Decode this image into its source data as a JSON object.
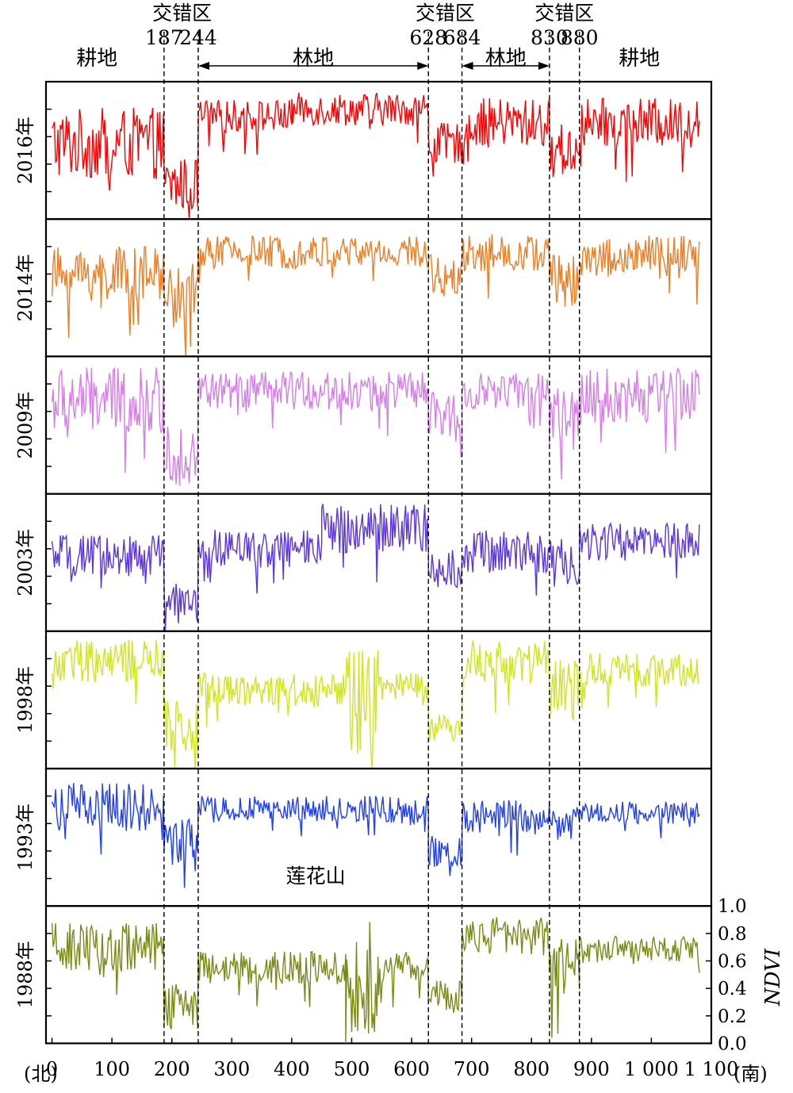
{
  "chart_data": {
    "type": "line",
    "title": "",
    "ylabel": "NDVI",
    "ylim": [
      0.0,
      1.0
    ],
    "y_ticks": [
      "0.0",
      "0.2",
      "0.4",
      "0.6",
      "0.8",
      "1.0"
    ],
    "xlim": [
      -10,
      1100
    ],
    "x_ticks": [
      {
        "value": 0,
        "label": "0"
      },
      {
        "value": 100,
        "label": "100"
      },
      {
        "value": 200,
        "label": "200"
      },
      {
        "value": 300,
        "label": "300"
      },
      {
        "value": 400,
        "label": "400"
      },
      {
        "value": 500,
        "label": "500"
      },
      {
        "value": 600,
        "label": "600"
      },
      {
        "value": 700,
        "label": "700"
      },
      {
        "value": 800,
        "label": "800"
      },
      {
        "value": 900,
        "label": "900"
      },
      {
        "value": 1000,
        "label": "1 000"
      },
      {
        "value": 1100,
        "label": "1 100"
      }
    ],
    "x_end_left": "(北)",
    "x_end_right": "(南)",
    "boundaries": [
      187,
      244,
      628,
      684,
      830,
      880
    ],
    "boundary_labels": [
      {
        "x": 187,
        "label": "187"
      },
      {
        "x": 244,
        "label": "244"
      },
      {
        "x": 628,
        "label": "628"
      },
      {
        "x": 684,
        "label": "684"
      },
      {
        "x": 830,
        "label": "830"
      },
      {
        "x": 880,
        "label": "880"
      }
    ],
    "zone_labels": [
      {
        "x": 217,
        "label": "交错区"
      },
      {
        "x": 656,
        "label": "交错区"
      },
      {
        "x": 855,
        "label": "交错区"
      }
    ],
    "land_labels": [
      {
        "x": 75,
        "label": "耕地",
        "arrow": false
      },
      {
        "x": 436,
        "label": "林地",
        "arrow": true,
        "from": 244,
        "to": 628
      },
      {
        "x": 757,
        "label": "林地",
        "arrow": true,
        "from": 684,
        "to": 830
      },
      {
        "x": 980,
        "label": "耕地",
        "arrow": false
      }
    ],
    "annotation": "莲花山",
    "annotation_x": 440,
    "series": [
      {
        "name": "2016年",
        "color": "#ff0000",
        "segments": [
          {
            "x": [
              0,
              187
            ],
            "level": 0.55,
            "noise": 0.26
          },
          {
            "x": [
              187,
              244
            ],
            "level": 0.25,
            "noise": 0.2
          },
          {
            "x": [
              244,
              400
            ],
            "level": 0.75,
            "noise": 0.12
          },
          {
            "x": [
              400,
              628
            ],
            "level": 0.8,
            "noise": 0.12
          },
          {
            "x": [
              628,
              684
            ],
            "level": 0.55,
            "noise": 0.15
          },
          {
            "x": [
              684,
              830
            ],
            "level": 0.7,
            "noise": 0.18
          },
          {
            "x": [
              830,
              880
            ],
            "level": 0.5,
            "noise": 0.2
          },
          {
            "x": [
              880,
              1080
            ],
            "level": 0.7,
            "noise": 0.18
          }
        ]
      },
      {
        "name": "2014年",
        "color": "#ef7d22",
        "segments": [
          {
            "x": [
              0,
              187
            ],
            "level": 0.6,
            "noise": 0.2
          },
          {
            "x": [
              187,
              244
            ],
            "level": 0.45,
            "noise": 0.25
          },
          {
            "x": [
              244,
              628
            ],
            "level": 0.76,
            "noise": 0.12
          },
          {
            "x": [
              628,
              684
            ],
            "level": 0.6,
            "noise": 0.15
          },
          {
            "x": [
              684,
              830
            ],
            "level": 0.75,
            "noise": 0.14
          },
          {
            "x": [
              830,
              880
            ],
            "level": 0.55,
            "noise": 0.2
          },
          {
            "x": [
              880,
              1080
            ],
            "level": 0.72,
            "noise": 0.16
          }
        ]
      },
      {
        "name": "2009年",
        "color": "#d57de8",
        "segments": [
          {
            "x": [
              0,
              187
            ],
            "level": 0.68,
            "noise": 0.24
          },
          {
            "x": [
              187,
              244
            ],
            "level": 0.3,
            "noise": 0.25
          },
          {
            "x": [
              244,
              628
            ],
            "level": 0.75,
            "noise": 0.14
          },
          {
            "x": [
              628,
              684
            ],
            "level": 0.55,
            "noise": 0.2
          },
          {
            "x": [
              684,
              830
            ],
            "level": 0.75,
            "noise": 0.13
          },
          {
            "x": [
              830,
              880
            ],
            "level": 0.55,
            "noise": 0.22
          },
          {
            "x": [
              880,
              1080
            ],
            "level": 0.72,
            "noise": 0.2
          }
        ]
      },
      {
        "name": "2003年",
        "color": "#5a35e0",
        "segments": [
          {
            "x": [
              0,
              187
            ],
            "level": 0.55,
            "noise": 0.15
          },
          {
            "x": [
              187,
              244
            ],
            "level": 0.2,
            "noise": 0.15
          },
          {
            "x": [
              244,
              450
            ],
            "level": 0.6,
            "noise": 0.14
          },
          {
            "x": [
              450,
              628
            ],
            "level": 0.75,
            "noise": 0.18
          },
          {
            "x": [
              628,
              684
            ],
            "level": 0.45,
            "noise": 0.14
          },
          {
            "x": [
              684,
              830
            ],
            "level": 0.58,
            "noise": 0.16
          },
          {
            "x": [
              830,
              880
            ],
            "level": 0.5,
            "noise": 0.18
          },
          {
            "x": [
              880,
              1080
            ],
            "level": 0.65,
            "noise": 0.14
          }
        ]
      },
      {
        "name": "1998年",
        "color": "#cfe51e",
        "segments": [
          {
            "x": [
              0,
              187
            ],
            "level": 0.78,
            "noise": 0.16
          },
          {
            "x": [
              187,
              244
            ],
            "level": 0.3,
            "noise": 0.2
          },
          {
            "x": [
              244,
              490
            ],
            "level": 0.58,
            "noise": 0.12
          },
          {
            "x": [
              490,
              545
            ],
            "level": 0.45,
            "noise": 0.45
          },
          {
            "x": [
              545,
              628
            ],
            "level": 0.6,
            "noise": 0.1
          },
          {
            "x": [
              628,
              684
            ],
            "level": 0.3,
            "noise": 0.1
          },
          {
            "x": [
              684,
              830
            ],
            "level": 0.78,
            "noise": 0.16
          },
          {
            "x": [
              830,
              880
            ],
            "level": 0.55,
            "noise": 0.25
          },
          {
            "x": [
              880,
              1080
            ],
            "level": 0.72,
            "noise": 0.12
          }
        ]
      },
      {
        "name": "1993年",
        "color": "#1f3ff0",
        "segments": [
          {
            "x": [
              0,
              187
            ],
            "level": 0.72,
            "noise": 0.18
          },
          {
            "x": [
              187,
              244
            ],
            "level": 0.45,
            "noise": 0.2
          },
          {
            "x": [
              244,
              628
            ],
            "level": 0.7,
            "noise": 0.1
          },
          {
            "x": [
              628,
              684
            ],
            "level": 0.4,
            "noise": 0.12
          },
          {
            "x": [
              684,
              830
            ],
            "level": 0.65,
            "noise": 0.12
          },
          {
            "x": [
              830,
              880
            ],
            "level": 0.6,
            "noise": 0.14
          },
          {
            "x": [
              880,
              1080
            ],
            "level": 0.68,
            "noise": 0.08
          }
        ]
      },
      {
        "name": "1988年",
        "color": "#7a8a16",
        "segments": [
          {
            "x": [
              0,
              187
            ],
            "level": 0.7,
            "noise": 0.18
          },
          {
            "x": [
              187,
              244
            ],
            "level": 0.3,
            "noise": 0.2
          },
          {
            "x": [
              244,
              490
            ],
            "level": 0.55,
            "noise": 0.12
          },
          {
            "x": [
              490,
              545
            ],
            "level": 0.45,
            "noise": 0.45
          },
          {
            "x": [
              545,
              628
            ],
            "level": 0.55,
            "noise": 0.12
          },
          {
            "x": [
              628,
              684
            ],
            "level": 0.35,
            "noise": 0.12
          },
          {
            "x": [
              684,
              830
            ],
            "level": 0.78,
            "noise": 0.14
          },
          {
            "x": [
              830,
              880
            ],
            "level": 0.55,
            "noise": 0.22
          },
          {
            "x": [
              880,
              1080
            ],
            "level": 0.68,
            "noise": 0.1
          }
        ]
      }
    ]
  }
}
